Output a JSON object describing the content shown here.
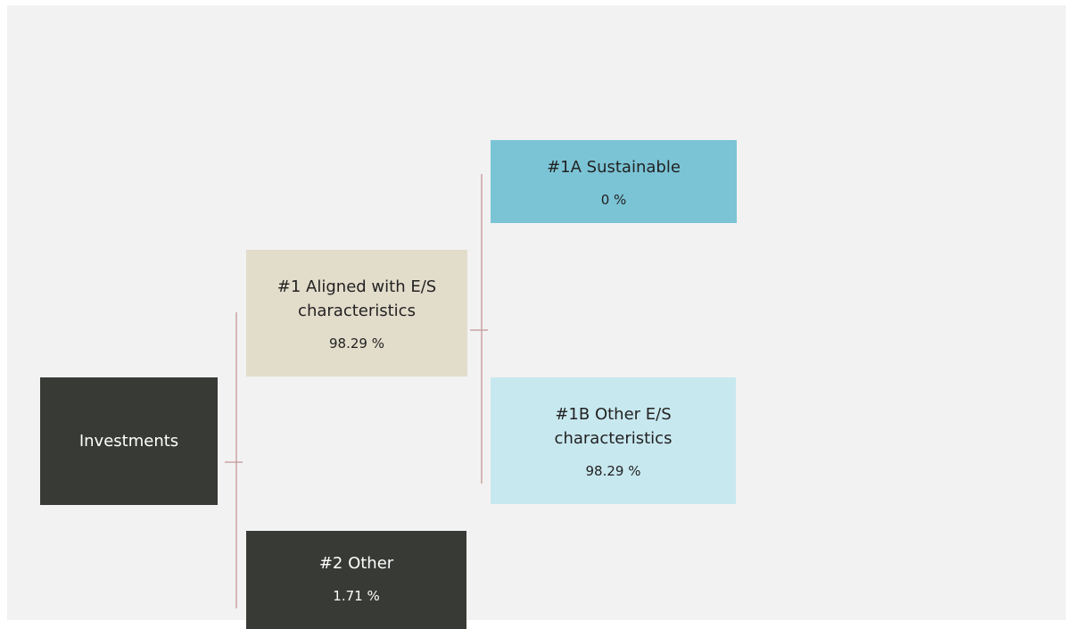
{
  "nodes": [
    {
      "label": "Investments"
    },
    {
      "label": "#1 Aligned with E/S characteristics",
      "value": "98.29 %"
    },
    {
      "label": "#2 Other",
      "value": "1.71 %"
    },
    {
      "label": "#1A Sustainable",
      "value": "0 %"
    },
    {
      "label": "#1B Other E/S characteristics",
      "value": "98.29 %"
    }
  ]
}
